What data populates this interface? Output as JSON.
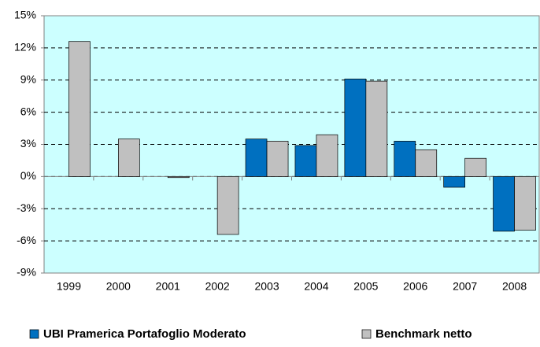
{
  "chart_data": {
    "type": "bar",
    "categories": [
      "1999",
      "2000",
      "2001",
      "2002",
      "2003",
      "2004",
      "2005",
      "2006",
      "2007",
      "2008"
    ],
    "series": [
      {
        "name": "UBI Pramerica Portafoglio Moderato",
        "color": "#0070c0",
        "values": [
          null,
          null,
          null,
          null,
          3.5,
          2.9,
          9.1,
          3.3,
          -1.0,
          -5.1
        ]
      },
      {
        "name": "Benchmark netto",
        "color": "#c0c0c0",
        "values": [
          12.6,
          3.5,
          -0.1,
          -5.4,
          3.3,
          3.9,
          8.9,
          2.5,
          1.7,
          -5.0
        ]
      }
    ],
    "ylim": [
      -9,
      15
    ],
    "yticks": [
      {
        "value": -9,
        "label": "-9%"
      },
      {
        "value": -6,
        "label": "-6%"
      },
      {
        "value": -3,
        "label": "-3%"
      },
      {
        "value": 0,
        "label": "0%"
      },
      {
        "value": 3,
        "label": "3%"
      },
      {
        "value": 6,
        "label": "6%"
      },
      {
        "value": 9,
        "label": "9%"
      },
      {
        "value": 12,
        "label": "12%"
      },
      {
        "value": 15,
        "label": "15%"
      }
    ],
    "grid": true,
    "background": "#ccffff"
  }
}
